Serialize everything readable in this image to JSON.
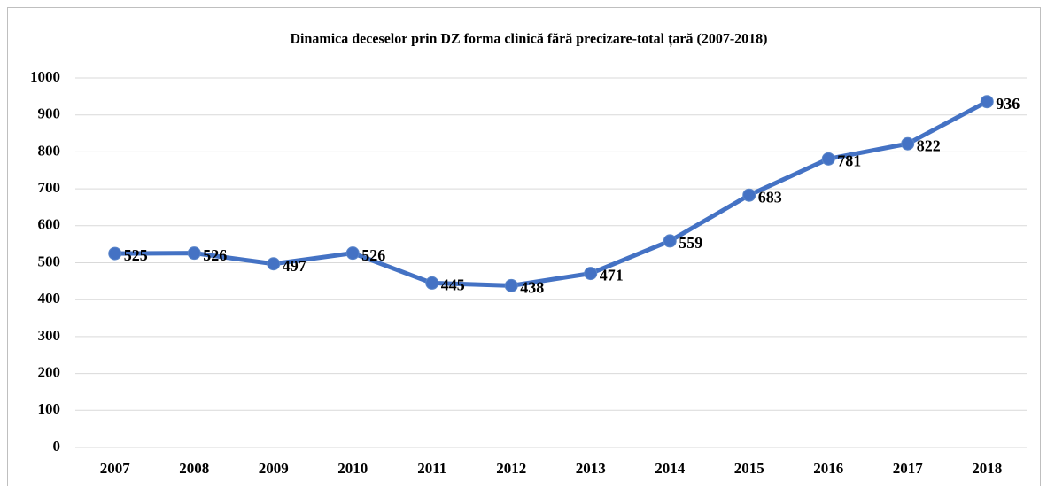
{
  "chart_data": {
    "type": "line",
    "title": "Dinamica deceselor prin DZ forma clinică fără precizare-total țară (2007-2018)",
    "categories": [
      "2007",
      "2008",
      "2009",
      "2010",
      "2011",
      "2012",
      "2013",
      "2014",
      "2015",
      "2016",
      "2017",
      "2018"
    ],
    "values": [
      525,
      526,
      497,
      526,
      445,
      438,
      471,
      559,
      683,
      781,
      822,
      936
    ],
    "color": "#4472c4",
    "ylim": [
      0,
      1000
    ],
    "yticks": [
      0,
      100,
      200,
      300,
      400,
      500,
      600,
      700,
      800,
      900,
      1000
    ],
    "grid": true
  }
}
